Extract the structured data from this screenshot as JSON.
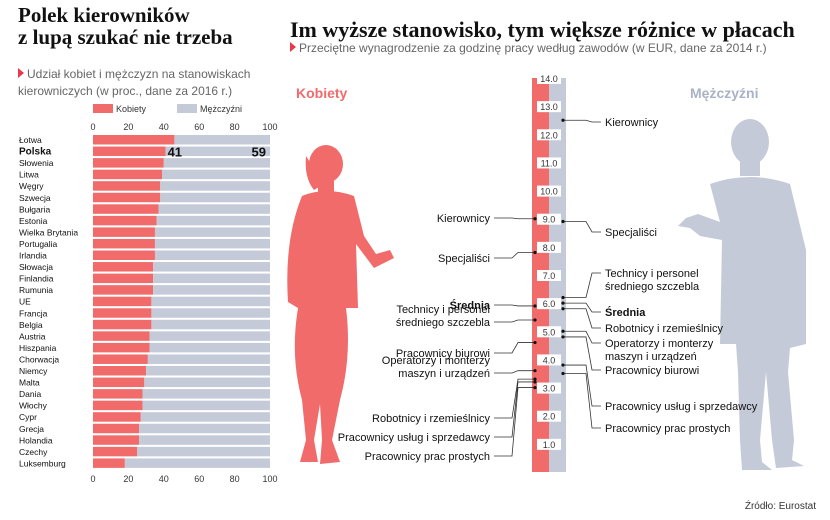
{
  "left": {
    "title_line1": "Polek kierowników",
    "title_line2": "z lupą szukać nie trzeba",
    "subtitle_line1": "Udział kobiet i mężczyzn na stanowiskach",
    "subtitle_line2": "kierowniczych (w proc., dane za 2016 r.)"
  },
  "right": {
    "title": "Im wyższe stanowisko, tym większe różnice w płacach",
    "subtitle": "Przeciętne wynagrodzenie za godzinę pracy według zawodów (w EUR, dane za 2014 r.)",
    "women_label": "Kobiety",
    "men_label": "Mężczyźni"
  },
  "source": "Źródło: Eurostat",
  "colors": {
    "women": "#f26b6b",
    "men": "#c4cad8",
    "accent": "#e8394a",
    "men_text": "#a9b2c6"
  },
  "chart_data": [
    {
      "type": "bar",
      "stacked": true,
      "orientation": "horizontal",
      "legend": [
        "Kobiety",
        "Mężczyźni"
      ],
      "legend_position": "top",
      "xlim": [
        0,
        100
      ],
      "xticks": [
        0,
        20,
        40,
        60,
        80,
        100
      ],
      "categories": [
        "Łotwa",
        "Polska",
        "Słowenia",
        "Litwa",
        "Węgry",
        "Szwecja",
        "Bułgaria",
        "Estonia",
        "Wielka Brytania",
        "Portugalia",
        "Irlandia",
        "Słowacja",
        "Finlandia",
        "Rumunia",
        "UE",
        "Francja",
        "Belgia",
        "Austria",
        "Hiszpania",
        "Chorwacja",
        "Niemcy",
        "Malta",
        "Dania",
        "Włochy",
        "Cypr",
        "Grecja",
        "Holandia",
        "Czechy",
        "Luksemburg"
      ],
      "series": [
        {
          "name": "Kobiety",
          "values": [
            46,
            41,
            40,
            39,
            38,
            38,
            37,
            36,
            35,
            35,
            35,
            34,
            34,
            34,
            33,
            33,
            33,
            32,
            32,
            31,
            30,
            29,
            28,
            28,
            27,
            26,
            26,
            25,
            18
          ]
        },
        {
          "name": "Mężczyźni",
          "values": [
            54,
            59,
            60,
            61,
            62,
            62,
            63,
            64,
            65,
            65,
            65,
            66,
            66,
            66,
            67,
            67,
            67,
            68,
            68,
            69,
            70,
            71,
            72,
            72,
            73,
            74,
            74,
            75,
            82
          ]
        }
      ],
      "highlight": {
        "category": "Polska",
        "labels": [
          "41",
          "59"
        ]
      }
    },
    {
      "type": "scale",
      "axis_ticks": [
        "1.0",
        "2.0",
        "3.0",
        "4.0",
        "5.0",
        "6.0",
        "7.0",
        "8.0",
        "9.0",
        "10.0",
        "11.0",
        "12.0",
        "13.0",
        "14.0"
      ],
      "ylim": [
        0,
        14.0
      ],
      "women": [
        {
          "label": "Kierownicy",
          "value": 9.0
        },
        {
          "label": "Specjaliści",
          "value": 7.8
        },
        {
          "label": "Średnia",
          "value": 5.9
        },
        {
          "label": "Technicy i personel średniego szczebla",
          "value": 5.4
        },
        {
          "label": "Pracownicy biurowi",
          "value": 4.6
        },
        {
          "label": "Operatorzy i monterzy maszyn i urządzeń",
          "value": 3.6
        },
        {
          "label": "Robotnicy i rzemieślnicy",
          "value": 3.3
        },
        {
          "label": "Pracownicy usług i sprzedawcy",
          "value": 3.2
        },
        {
          "label": "Pracownicy prac prostych",
          "value": 3.0
        }
      ],
      "men": [
        {
          "label": "Kierownicy",
          "value": 12.5
        },
        {
          "label": "Specjaliści",
          "value": 8.9
        },
        {
          "label": "Technicy i personel średniego szczebla",
          "value": 6.2
        },
        {
          "label": "Średnia",
          "value": 6.0
        },
        {
          "label": "Robotnicy i rzemieślnicy",
          "value": 5.8
        },
        {
          "label": "Operatorzy i monterzy maszyn i urządzeń",
          "value": 5.0
        },
        {
          "label": "Pracownicy biurowi",
          "value": 4.8
        },
        {
          "label": "Pracownicy usług i sprzedawcy",
          "value": 3.8
        },
        {
          "label": "Pracownicy prac prostych",
          "value": 3.5
        }
      ]
    }
  ]
}
